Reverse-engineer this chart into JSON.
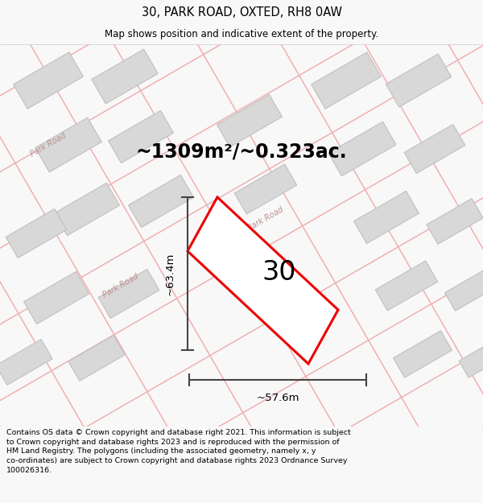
{
  "title": "30, PARK ROAD, OXTED, RH8 0AW",
  "subtitle": "Map shows position and indicative extent of the property.",
  "area_text": "~1309m²/~0.323ac.",
  "house_number": "30",
  "width_label": "~57.6m",
  "height_label": "~63.4m",
  "footer": "Contains OS data © Crown copyright and database right 2021. This information is subject to Crown copyright and database rights 2023 and is reproduced with the permission of HM Land Registry. The polygons (including the associated geometry, namely x, y co-ordinates) are subject to Crown copyright and database rights 2023 Ordnance Survey 100026316.",
  "bg_color": "#f8f8f8",
  "map_bg_color": "#ffffff",
  "road_line_color": "#f0b0b0",
  "building_color": "#d8d8d8",
  "building_edge": "#c0c0c0",
  "plot_color": "#ee0000",
  "title_color": "#000000",
  "text_color": "#000000",
  "road_label_color": "#c09090",
  "dim_line_color": "#444444"
}
